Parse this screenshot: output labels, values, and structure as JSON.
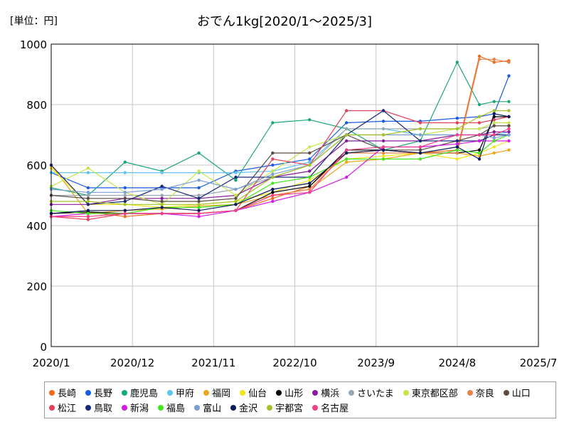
{
  "chart_data": {
    "type": "line",
    "title": "おでん1kg[2020/1～2025/3]",
    "unit_label": "[単位：円]",
    "xlabel": "",
    "ylabel": "",
    "x_ticks": [
      "2020/1",
      "2020/12",
      "2021/11",
      "2022/10",
      "2023/9",
      "2024/8",
      "2025/7"
    ],
    "x_range": [
      "2020-01",
      "2025-07"
    ],
    "ylim": [
      0,
      1000
    ],
    "y_ticks": [
      0,
      200,
      400,
      600,
      800,
      1000
    ],
    "grid": true,
    "legend_position": "bottom",
    "x": [
      "2020-01",
      "2020-06",
      "2020-11",
      "2021-04",
      "2021-09",
      "2022-02",
      "2022-07",
      "2022-12",
      "2023-05",
      "2023-10",
      "2024-03",
      "2024-08",
      "2024-11",
      "2025-01",
      "2025-03"
    ],
    "series": [
      {
        "name": "長崎",
        "color": "#f06a1c",
        "values": [
          440,
          445,
          430,
          440,
          440,
          450,
          490,
          530,
          640,
          650,
          640,
          650,
          960,
          940,
          945
        ]
      },
      {
        "name": "長野",
        "color": "#1a5be6",
        "values": [
          575,
          525,
          525,
          525,
          525,
          580,
          600,
          620,
          740,
          745,
          745,
          755,
          760,
          770,
          895
        ]
      },
      {
        "name": "鹿児島",
        "color": "#1aa872",
        "values": [
          525,
          500,
          610,
          580,
          640,
          550,
          740,
          750,
          720,
          650,
          680,
          940,
          800,
          810,
          810
        ]
      },
      {
        "name": "甲府",
        "color": "#5ec3f2",
        "values": [
          575,
          575,
          575,
          575,
          575,
          575,
          580,
          610,
          720,
          720,
          700,
          700,
          700,
          700,
          710
        ]
      },
      {
        "name": "福岡",
        "color": "#f2a51a",
        "values": [
          600,
          440,
          450,
          455,
          465,
          470,
          500,
          520,
          610,
          620,
          640,
          640,
          630,
          640,
          650
        ]
      },
      {
        "name": "仙台",
        "color": "#f2e61a",
        "values": [
          590,
          470,
          470,
          460,
          470,
          480,
          510,
          550,
          620,
          630,
          640,
          620,
          640,
          660,
          680
        ]
      },
      {
        "name": "山形",
        "color": "#000000",
        "values": [
          440,
          445,
          440,
          440,
          440,
          450,
          510,
          530,
          650,
          650,
          640,
          640,
          650,
          760,
          760
        ]
      },
      {
        "name": "横浜",
        "color": "#8a1a9e",
        "values": [
          470,
          470,
          490,
          490,
          490,
          500,
          560,
          580,
          680,
          680,
          680,
          700,
          700,
          710,
          710
        ]
      },
      {
        "name": "さいたま",
        "color": "#9aa6b2",
        "values": [
          500,
          500,
          500,
          500,
          500,
          520,
          560,
          600,
          720,
          720,
          720,
          720,
          720,
          730,
          730
        ]
      },
      {
        "name": "東京都区部",
        "color": "#c4e64a",
        "values": [
          530,
          590,
          510,
          470,
          580,
          500,
          580,
          660,
          700,
          700,
          700,
          720,
          720,
          740,
          740
        ]
      },
      {
        "name": "奈良",
        "color": "#e6844a",
        "values": [
          430,
          430,
          440,
          440,
          440,
          450,
          500,
          520,
          640,
          640,
          640,
          640,
          950,
          950,
          940
        ]
      },
      {
        "name": "山口",
        "color": "#5a4a42",
        "values": [
          500,
          490,
          490,
          480,
          480,
          490,
          640,
          640,
          700,
          650,
          650,
          680,
          700,
          730,
          730
        ]
      },
      {
        "name": "松江",
        "color": "#e6405a",
        "values": [
          430,
          420,
          440,
          440,
          440,
          450,
          620,
          600,
          780,
          780,
          740,
          740,
          740,
          750,
          760
        ]
      },
      {
        "name": "鳥取",
        "color": "#1a2a7a",
        "values": [
          600,
          470,
          480,
          530,
          490,
          560,
          560,
          560,
          700,
          780,
          680,
          680,
          680,
          700,
          700
        ]
      },
      {
        "name": "新潟",
        "color": "#d61ae6",
        "values": [
          430,
          440,
          440,
          440,
          430,
          450,
          480,
          510,
          560,
          660,
          660,
          670,
          680,
          680,
          680
        ]
      },
      {
        "name": "福島",
        "color": "#42e61a",
        "values": [
          450,
          440,
          440,
          460,
          460,
          470,
          540,
          560,
          620,
          620,
          620,
          650,
          640,
          680,
          700
        ]
      },
      {
        "name": "富山",
        "color": "#7a9ed6",
        "values": [
          520,
          510,
          510,
          520,
          550,
          520,
          570,
          600,
          700,
          700,
          700,
          700,
          700,
          690,
          700
        ]
      },
      {
        "name": "金沢",
        "color": "#0a1a5a",
        "values": [
          440,
          450,
          450,
          460,
          450,
          470,
          520,
          540,
          640,
          650,
          640,
          660,
          620,
          770,
          760
        ]
      },
      {
        "name": "宇都宮",
        "color": "#a6c22a",
        "values": [
          480,
          480,
          470,
          470,
          470,
          480,
          560,
          600,
          700,
          700,
          720,
          720,
          760,
          780,
          780
        ]
      },
      {
        "name": "名古屋",
        "color": "#f2408a",
        "values": [
          430,
          430,
          440,
          440,
          440,
          450,
          500,
          510,
          650,
          660,
          660,
          700,
          700,
          700,
          720
        ]
      }
    ]
  }
}
